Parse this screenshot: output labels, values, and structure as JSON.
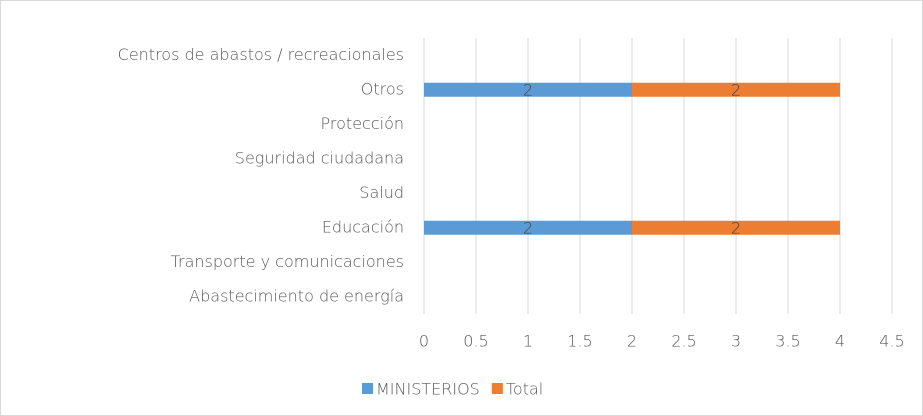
{
  "chart_data": {
    "type": "stacked_barh",
    "categories": [
      "Centros de abastos / recreacionales",
      "Otros",
      "Protección",
      "Seguridad ciudadana",
      "Salud",
      "Educación",
      "Transporte y comunicaciones",
      "Abastecimiento de energía"
    ],
    "series": [
      {
        "name": "MINISTERIOS",
        "color": "#5b9bd5",
        "values": [
          null,
          2,
          null,
          null,
          null,
          2,
          null,
          null
        ]
      },
      {
        "name": "Total",
        "color": "#ed7d31",
        "values": [
          null,
          2,
          null,
          null,
          null,
          2,
          null,
          null
        ]
      }
    ],
    "xlim": [
      0,
      4.5
    ],
    "xticks": [
      0,
      0.5,
      1,
      1.5,
      2,
      2.5,
      3,
      3.5,
      4,
      4.5
    ],
    "grid": true,
    "legend": "bottom"
  }
}
